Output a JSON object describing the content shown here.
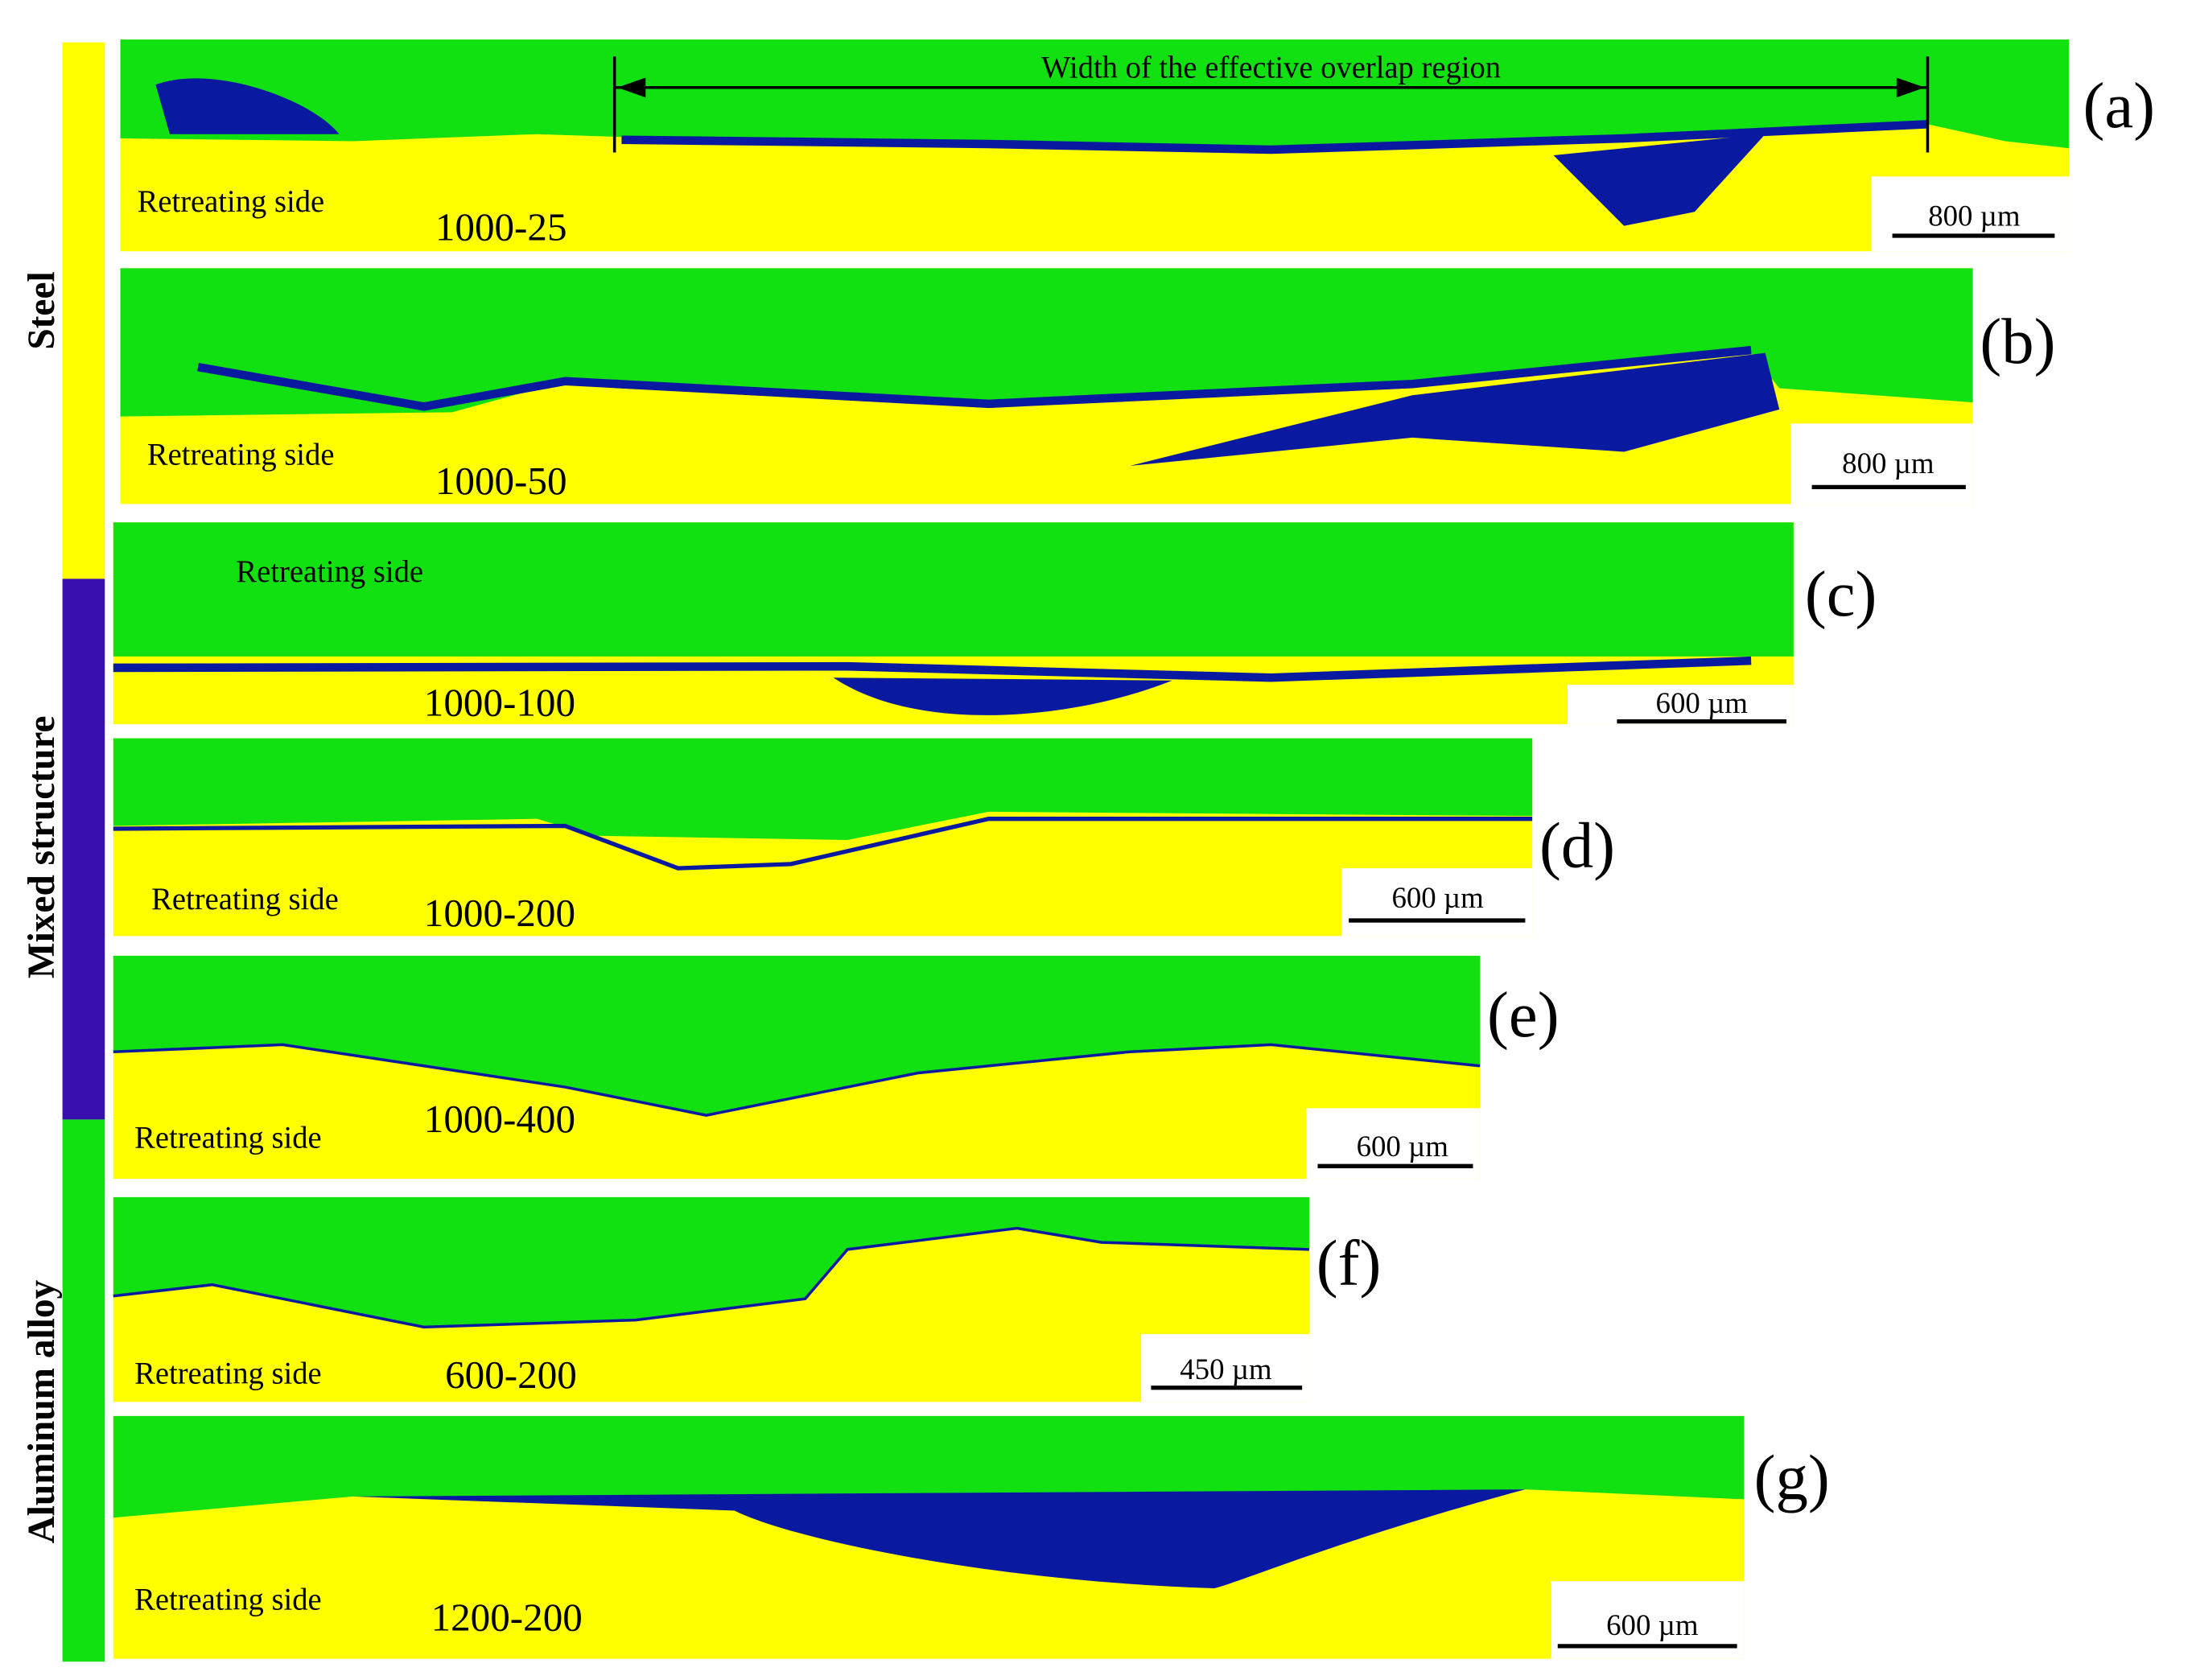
{
  "legend": {
    "items": [
      {
        "label": "Steel"
      },
      {
        "label": "Mixed structure"
      },
      {
        "label": "Aluminum alloy"
      }
    ]
  },
  "annotation": "Width of the effective overlap region",
  "panels": [
    {
      "label": "(a)",
      "sample": "1000-25",
      "side": "Retreating side",
      "scale": "800 µm"
    },
    {
      "label": "(b)",
      "sample": "1000-50",
      "side": "Retreating side",
      "scale": "800 µm"
    },
    {
      "label": "(c)",
      "sample": "1000-100",
      "side": "Retreating side",
      "scale": "600 µm"
    },
    {
      "label": "(d)",
      "sample": "1000-200",
      "side": "Retreating side",
      "scale": "600 µm"
    },
    {
      "label": "(e)",
      "sample": "1000-400",
      "side": "Retreating side",
      "scale": "600 µm"
    },
    {
      "label": "(f)",
      "sample": "600-200",
      "side": "Retreating side",
      "scale": "450 µm"
    },
    {
      "label": "(g)",
      "sample": "1200-200",
      "side": "Retreating side",
      "scale": "600 µm"
    }
  ]
}
